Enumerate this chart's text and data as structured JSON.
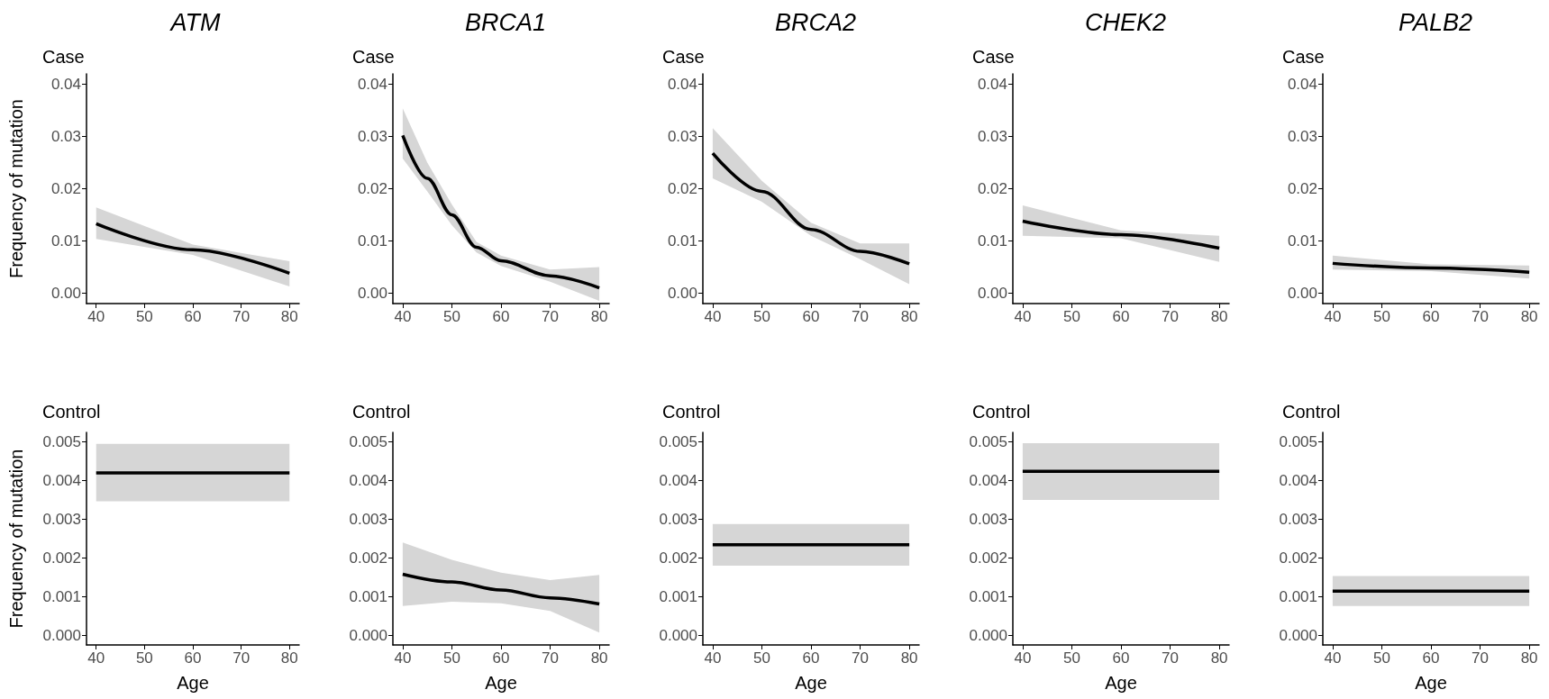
{
  "chart_data": [
    {
      "type": "line",
      "title": "ATM",
      "subtitle": "Case",
      "ylabel": "Frequency of mutation",
      "x": [
        40,
        60,
        80
      ],
      "xlim": [
        38,
        82
      ],
      "xticks": [
        40,
        50,
        60,
        70,
        80
      ],
      "ylim": [
        -0.002,
        0.042
      ],
      "yticks": [
        {
          "value": 0,
          "label": "0.00"
        },
        {
          "value": 0.01,
          "label": "0.01"
        },
        {
          "value": 0.02,
          "label": "0.02"
        },
        {
          "value": 0.03,
          "label": "0.03"
        },
        {
          "value": 0.04,
          "label": "0.04"
        }
      ],
      "series": [
        {
          "color": "#000000",
          "values": [
            0.0133,
            0.0083,
            0.0038
          ],
          "lower": [
            0.0104,
            0.0073,
            0.0013
          ],
          "upper": [
            0.0164,
            0.0093,
            0.0061
          ]
        }
      ]
    },
    {
      "type": "line",
      "title": "BRCA1",
      "subtitle": "Case",
      "x": [
        40,
        45,
        50,
        55,
        60,
        70,
        80
      ],
      "xlim": [
        38,
        82
      ],
      "xticks": [
        40,
        50,
        60,
        70,
        80
      ],
      "ylim": [
        -0.002,
        0.042
      ],
      "yticks": [
        {
          "value": 0,
          "label": "0.00"
        },
        {
          "value": 0.01,
          "label": "0.01"
        },
        {
          "value": 0.02,
          "label": "0.02"
        },
        {
          "value": 0.03,
          "label": "0.03"
        },
        {
          "value": 0.04,
          "label": "0.04"
        }
      ],
      "series": [
        {
          "color": "#000000",
          "values": [
            0.0302,
            0.022,
            0.015,
            0.0088,
            0.0062,
            0.0033,
            0.001
          ],
          "lower": [
            0.0258,
            0.0195,
            0.013,
            0.0078,
            0.0052,
            0.0022,
            -0.0015
          ],
          "upper": [
            0.0354,
            0.025,
            0.017,
            0.0098,
            0.0072,
            0.0045,
            0.005
          ]
        }
      ]
    },
    {
      "type": "line",
      "title": "BRCA2",
      "subtitle": "Case",
      "x": [
        40,
        50,
        60,
        70,
        80
      ],
      "xlim": [
        38,
        82
      ],
      "xticks": [
        40,
        50,
        60,
        70,
        80
      ],
      "ylim": [
        -0.002,
        0.042
      ],
      "yticks": [
        {
          "value": 0,
          "label": "0.00"
        },
        {
          "value": 0.01,
          "label": "0.01"
        },
        {
          "value": 0.02,
          "label": "0.02"
        },
        {
          "value": 0.03,
          "label": "0.03"
        },
        {
          "value": 0.04,
          "label": "0.04"
        }
      ],
      "series": [
        {
          "color": "#000000",
          "values": [
            0.0268,
            0.0195,
            0.0122,
            0.008,
            0.0056
          ],
          "lower": [
            0.022,
            0.0175,
            0.011,
            0.0065,
            0.0017
          ],
          "upper": [
            0.0316,
            0.0215,
            0.0135,
            0.0095,
            0.0095
          ]
        }
      ]
    },
    {
      "type": "line",
      "title": "CHEK2",
      "subtitle": "Case",
      "x": [
        40,
        60,
        80
      ],
      "xlim": [
        38,
        82
      ],
      "xticks": [
        40,
        50,
        60,
        70,
        80
      ],
      "ylim": [
        -0.002,
        0.042
      ],
      "yticks": [
        {
          "value": 0,
          "label": "0.00"
        },
        {
          "value": 0.01,
          "label": "0.01"
        },
        {
          "value": 0.02,
          "label": "0.02"
        },
        {
          "value": 0.03,
          "label": "0.03"
        },
        {
          "value": 0.04,
          "label": "0.04"
        }
      ],
      "series": [
        {
          "color": "#000000",
          "values": [
            0.0138,
            0.0112,
            0.0086
          ],
          "lower": [
            0.011,
            0.0105,
            0.006
          ],
          "upper": [
            0.0168,
            0.012,
            0.011
          ]
        }
      ]
    },
    {
      "type": "line",
      "title": "PALB2",
      "subtitle": "Case",
      "x": [
        40,
        60,
        80
      ],
      "xlim": [
        38,
        82
      ],
      "xticks": [
        40,
        50,
        60,
        70,
        80
      ],
      "ylim": [
        -0.002,
        0.042
      ],
      "yticks": [
        {
          "value": 0,
          "label": "0.00"
        },
        {
          "value": 0.01,
          "label": "0.01"
        },
        {
          "value": 0.02,
          "label": "0.02"
        },
        {
          "value": 0.03,
          "label": "0.03"
        },
        {
          "value": 0.04,
          "label": "0.04"
        }
      ],
      "series": [
        {
          "color": "#000000",
          "values": [
            0.0057,
            0.0048,
            0.004
          ],
          "lower": [
            0.0045,
            0.0042,
            0.0028
          ],
          "upper": [
            0.0072,
            0.0055,
            0.0053
          ]
        }
      ]
    },
    {
      "type": "line",
      "subtitle": "Control",
      "xlabel": "Age",
      "ylabel": "Frequency of mutation",
      "x": [
        40,
        80
      ],
      "xlim": [
        38,
        82
      ],
      "xticks": [
        40,
        50,
        60,
        70,
        80
      ],
      "ylim": [
        -0.00025,
        0.00525
      ],
      "yticks": [
        {
          "value": 0,
          "label": "0.000"
        },
        {
          "value": 0.001,
          "label": "0.001"
        },
        {
          "value": 0.002,
          "label": "0.002"
        },
        {
          "value": 0.003,
          "label": "0.003"
        },
        {
          "value": 0.004,
          "label": "0.004"
        },
        {
          "value": 0.005,
          "label": "0.005"
        }
      ],
      "series": [
        {
          "color": "#000000",
          "values": [
            0.0042,
            0.0042
          ],
          "lower": [
            0.00347,
            0.00347
          ],
          "upper": [
            0.00495,
            0.00495
          ]
        }
      ]
    },
    {
      "type": "line",
      "subtitle": "Control",
      "xlabel": "Age",
      "x": [
        40,
        50,
        60,
        70,
        80
      ],
      "xlim": [
        38,
        82
      ],
      "xticks": [
        40,
        50,
        60,
        70,
        80
      ],
      "ylim": [
        -0.00025,
        0.00525
      ],
      "yticks": [
        {
          "value": 0,
          "label": "0.000"
        },
        {
          "value": 0.001,
          "label": "0.001"
        },
        {
          "value": 0.002,
          "label": "0.002"
        },
        {
          "value": 0.003,
          "label": "0.003"
        },
        {
          "value": 0.004,
          "label": "0.004"
        },
        {
          "value": 0.005,
          "label": "0.005"
        }
      ],
      "series": [
        {
          "color": "#000000",
          "values": [
            0.00158,
            0.00138,
            0.00117,
            0.00097,
            0.00081
          ],
          "lower": [
            0.00076,
            0.00087,
            0.00083,
            0.00063,
            7e-05
          ],
          "upper": [
            0.0024,
            0.00195,
            0.00162,
            0.00143,
            0.00156
          ]
        }
      ]
    },
    {
      "type": "line",
      "subtitle": "Control",
      "xlabel": "Age",
      "x": [
        40,
        80
      ],
      "xlim": [
        38,
        82
      ],
      "xticks": [
        40,
        50,
        60,
        70,
        80
      ],
      "ylim": [
        -0.00025,
        0.00525
      ],
      "yticks": [
        {
          "value": 0,
          "label": "0.000"
        },
        {
          "value": 0.001,
          "label": "0.001"
        },
        {
          "value": 0.002,
          "label": "0.002"
        },
        {
          "value": 0.003,
          "label": "0.003"
        },
        {
          "value": 0.004,
          "label": "0.004"
        },
        {
          "value": 0.005,
          "label": "0.005"
        }
      ],
      "series": [
        {
          "color": "#000000",
          "values": [
            0.00234,
            0.00234
          ],
          "lower": [
            0.0018,
            0.0018
          ],
          "upper": [
            0.00288,
            0.00288
          ]
        }
      ]
    },
    {
      "type": "line",
      "subtitle": "Control",
      "xlabel": "Age",
      "x": [
        40,
        80
      ],
      "xlim": [
        38,
        82
      ],
      "xticks": [
        40,
        50,
        60,
        70,
        80
      ],
      "ylim": [
        -0.00025,
        0.00525
      ],
      "yticks": [
        {
          "value": 0,
          "label": "0.000"
        },
        {
          "value": 0.001,
          "label": "0.001"
        },
        {
          "value": 0.002,
          "label": "0.002"
        },
        {
          "value": 0.003,
          "label": "0.003"
        },
        {
          "value": 0.004,
          "label": "0.004"
        },
        {
          "value": 0.005,
          "label": "0.005"
        }
      ],
      "series": [
        {
          "color": "#000000",
          "values": [
            0.00424,
            0.00424
          ],
          "lower": [
            0.0035,
            0.0035
          ],
          "upper": [
            0.00497,
            0.00497
          ]
        }
      ]
    },
    {
      "type": "line",
      "subtitle": "Control",
      "xlabel": "Age",
      "x": [
        40,
        80
      ],
      "xlim": [
        38,
        82
      ],
      "xticks": [
        40,
        50,
        60,
        70,
        80
      ],
      "ylim": [
        -0.00025,
        0.00525
      ],
      "yticks": [
        {
          "value": 0,
          "label": "0.000"
        },
        {
          "value": 0.001,
          "label": "0.001"
        },
        {
          "value": 0.002,
          "label": "0.002"
        },
        {
          "value": 0.003,
          "label": "0.003"
        },
        {
          "value": 0.004,
          "label": "0.004"
        },
        {
          "value": 0.005,
          "label": "0.005"
        }
      ],
      "series": [
        {
          "color": "#000000",
          "values": [
            0.00114,
            0.00114
          ],
          "lower": [
            0.00076,
            0.00076
          ],
          "upper": [
            0.00153,
            0.00153
          ]
        }
      ]
    }
  ]
}
